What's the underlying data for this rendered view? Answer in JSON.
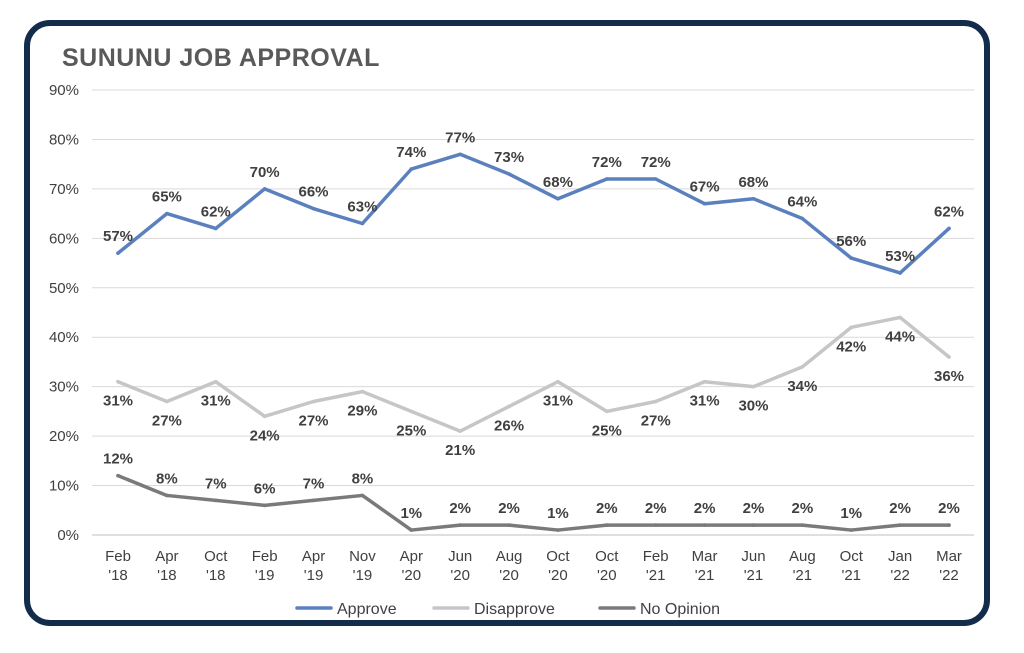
{
  "chart_data": {
    "type": "line",
    "title": "SUNUNU JOB APPROVAL",
    "categories": [
      [
        "Feb",
        "'18"
      ],
      [
        "Apr",
        "'18"
      ],
      [
        "Oct",
        "'18"
      ],
      [
        "Feb",
        "'19"
      ],
      [
        "Apr",
        "'19"
      ],
      [
        "Nov",
        "'19"
      ],
      [
        "Apr",
        "'20"
      ],
      [
        "Jun",
        "'20"
      ],
      [
        "Aug",
        "'20"
      ],
      [
        "Oct",
        "'20"
      ],
      [
        "Oct",
        "'20"
      ],
      [
        "Feb",
        "'21"
      ],
      [
        "Mar",
        "'21"
      ],
      [
        "Jun",
        "'21"
      ],
      [
        "Aug",
        "'21"
      ],
      [
        "Oct",
        "'21"
      ],
      [
        "Jan",
        "'22"
      ],
      [
        "Mar",
        "'22"
      ]
    ],
    "y_ticks": [
      "0%",
      "10%",
      "20%",
      "30%",
      "40%",
      "50%",
      "60%",
      "70%",
      "80%",
      "90%"
    ],
    "ylim": [
      0,
      90
    ],
    "grid": true,
    "legend_position": "bottom",
    "series": [
      {
        "name": "Approve",
        "color": "#5b80be",
        "label_pos": "above",
        "values": [
          57,
          65,
          62,
          70,
          66,
          63,
          74,
          77,
          73,
          68,
          72,
          72,
          67,
          68,
          64,
          56,
          53,
          62
        ]
      },
      {
        "name": "Disapprove",
        "color": "#c6c6c6",
        "label_pos": "below",
        "values": [
          31,
          27,
          31,
          24,
          27,
          29,
          25,
          21,
          26,
          31,
          25,
          27,
          31,
          30,
          34,
          42,
          44,
          36
        ]
      },
      {
        "name": "No Opinion",
        "color": "#7a7a7a",
        "label_pos": "above",
        "values": [
          12,
          8,
          7,
          6,
          7,
          8,
          1,
          2,
          2,
          1,
          2,
          2,
          2,
          2,
          2,
          1,
          2,
          2
        ]
      }
    ]
  }
}
